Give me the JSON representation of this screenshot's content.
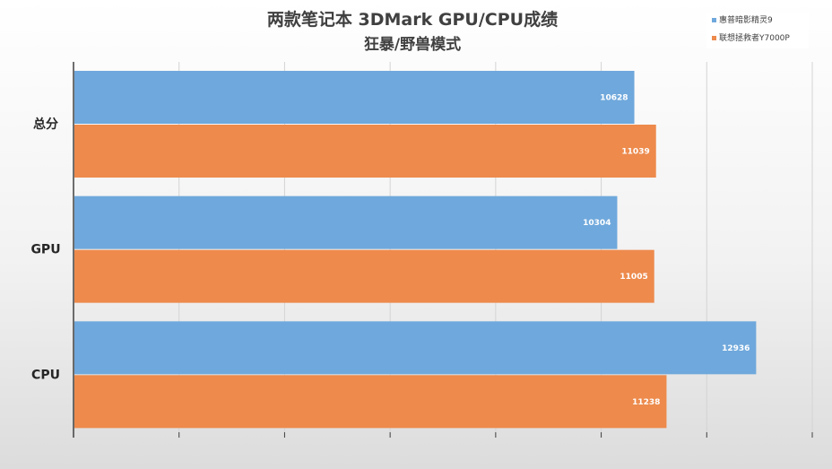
{
  "chart_data": {
    "type": "bar",
    "orientation": "horizontal",
    "title": "两款笔记本 3DMark GPU/CPU成绩",
    "subtitle": "狂暴/野兽模式",
    "categories": [
      "总分",
      "GPU",
      "CPU"
    ],
    "series": [
      {
        "name": "惠普暗影精灵9",
        "values": [
          10628,
          10304,
          12936
        ],
        "color": "#6fa8dc"
      },
      {
        "name": "联想拯救者Y7000P",
        "values": [
          11039,
          11005,
          11238
        ],
        "color": "#ed8a4c"
      }
    ],
    "xlim": [
      0,
      14000
    ],
    "grid": true,
    "legend_position": "top-right",
    "data_labels": true
  }
}
